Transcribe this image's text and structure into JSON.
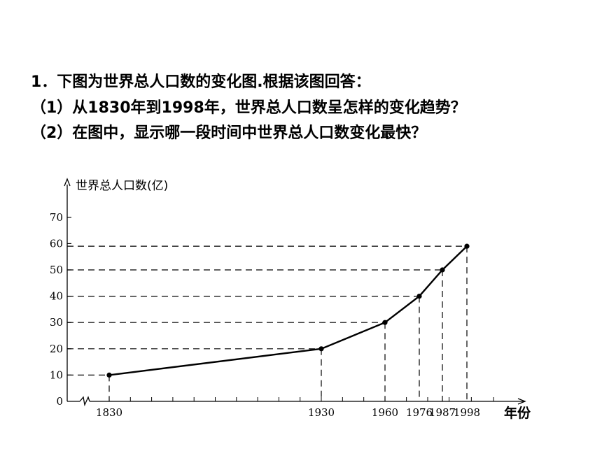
{
  "question": {
    "line1": "1．下图为世界总人口数的变化图.根据该图回答：",
    "line2": "（1）从1830年到1998年，世界总人口数呈怎样的变化趋势？",
    "line3": "（2）在图中，显示哪一段时间中世界总人口数变化最快？"
  },
  "chart_data": {
    "type": "line",
    "ylabel": "世界总人口数(亿)",
    "xlabel": "年份",
    "y_ticks": [
      "0",
      "10",
      "20",
      "30",
      "40",
      "50",
      "60",
      "70"
    ],
    "ylim": [
      0,
      70
    ],
    "x_tick_labels": [
      "1830",
      "1930",
      "1960",
      "1976",
      "1987",
      "1998"
    ],
    "x": [
      1830,
      1930,
      1960,
      1976,
      1987,
      1998
    ],
    "values": [
      10,
      20,
      30,
      40,
      50,
      59
    ],
    "axis_break": true,
    "grid": false,
    "guide_lines": "dashed"
  }
}
